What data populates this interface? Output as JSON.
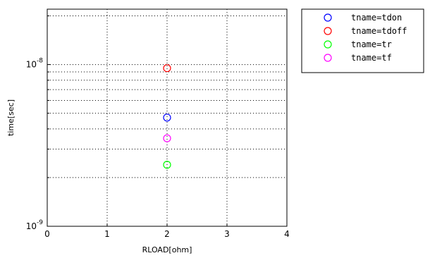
{
  "chart_data": {
    "type": "scatter",
    "xlabel": "RLOAD[ohm]",
    "ylabel": "time[sec]",
    "xlim": [
      0,
      4
    ],
    "ylim": [
      1e-09,
      2.2e-08
    ],
    "yscale": "log",
    "grid": true,
    "legend_position": "outside-right-top",
    "x_ticks": [
      "0",
      "1",
      "2",
      "3",
      "4"
    ],
    "y_ticks": [
      {
        "value": 1e-09,
        "base": "10",
        "exp": "-9"
      },
      {
        "value": 1e-08,
        "base": "10",
        "exp": "-8"
      }
    ],
    "series": [
      {
        "name": "tname=tdon",
        "color": "#0000ff",
        "marker": "circle-open",
        "points": [
          {
            "x": 2,
            "y": 4.7e-09
          }
        ]
      },
      {
        "name": "tname=tdoff",
        "color": "#ff0000",
        "marker": "circle-open",
        "points": [
          {
            "x": 2,
            "y": 9.5e-09
          }
        ]
      },
      {
        "name": "tname=tr",
        "color": "#00ff00",
        "marker": "circle-open",
        "points": [
          {
            "x": 2,
            "y": 2.4e-09
          }
        ]
      },
      {
        "name": "tname=tf",
        "color": "#ff00ff",
        "marker": "circle-open",
        "points": [
          {
            "x": 2,
            "y": 3.5e-09
          }
        ]
      }
    ]
  }
}
